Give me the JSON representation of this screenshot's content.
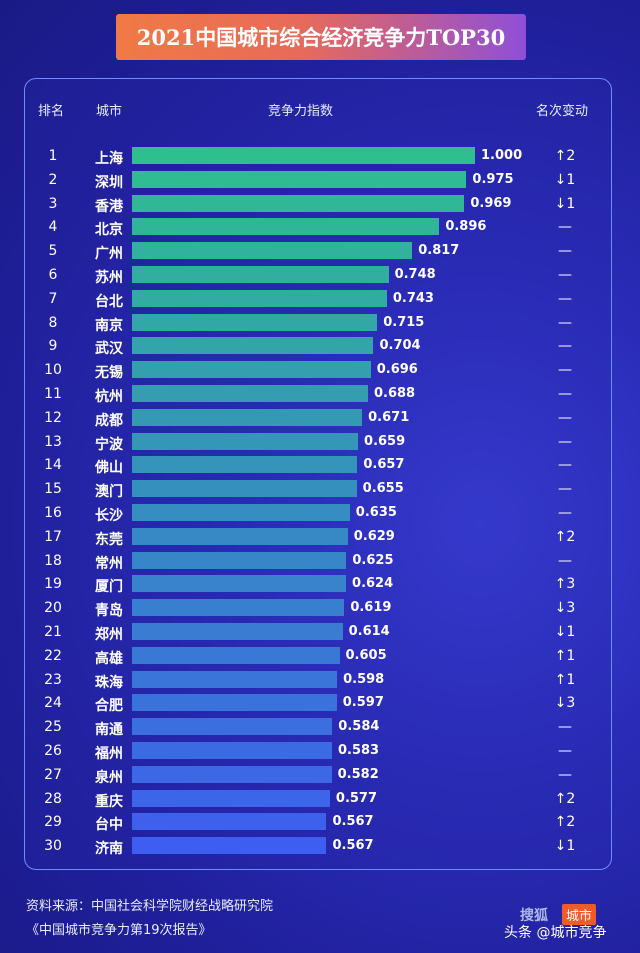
{
  "title": "2021中国城市综合经济竞争力TOP30",
  "headers": {
    "rank": "排名",
    "city": "城市",
    "index": "竞争力指数",
    "change": "名次变动"
  },
  "chart_data": {
    "type": "bar",
    "orientation": "horizontal",
    "title": "2021中国城市综合经济竞争力TOP30",
    "xlim": [
      0,
      1.0
    ],
    "rows": [
      {
        "rank": "1",
        "city": "上海",
        "value": "1.000",
        "change": "↑2"
      },
      {
        "rank": "2",
        "city": "深圳",
        "value": "0.975",
        "change": "↓1"
      },
      {
        "rank": "3",
        "city": "香港",
        "value": "0.969",
        "change": "↓1"
      },
      {
        "rank": "4",
        "city": "北京",
        "value": "0.896",
        "change": "—"
      },
      {
        "rank": "5",
        "city": "广州",
        "value": "0.817",
        "change": "—"
      },
      {
        "rank": "6",
        "city": "苏州",
        "value": "0.748",
        "change": "—"
      },
      {
        "rank": "7",
        "city": "台北",
        "value": "0.743",
        "change": "—"
      },
      {
        "rank": "8",
        "city": "南京",
        "value": "0.715",
        "change": "—"
      },
      {
        "rank": "9",
        "city": "武汉",
        "value": "0.704",
        "change": "—"
      },
      {
        "rank": "10",
        "city": "无锡",
        "value": "0.696",
        "change": "—"
      },
      {
        "rank": "11",
        "city": "杭州",
        "value": "0.688",
        "change": "—"
      },
      {
        "rank": "12",
        "city": "成都",
        "value": "0.671",
        "change": "—"
      },
      {
        "rank": "13",
        "city": "宁波",
        "value": "0.659",
        "change": "—"
      },
      {
        "rank": "14",
        "city": "佛山",
        "value": "0.657",
        "change": "—"
      },
      {
        "rank": "15",
        "city": "澳门",
        "value": "0.655",
        "change": "—"
      },
      {
        "rank": "16",
        "city": "长沙",
        "value": "0.635",
        "change": "—"
      },
      {
        "rank": "17",
        "city": "东莞",
        "value": "0.629",
        "change": "↑2"
      },
      {
        "rank": "18",
        "city": "常州",
        "value": "0.625",
        "change": "—"
      },
      {
        "rank": "19",
        "city": "厦门",
        "value": "0.624",
        "change": "↑3"
      },
      {
        "rank": "20",
        "city": "青岛",
        "value": "0.619",
        "change": "↓3"
      },
      {
        "rank": "21",
        "city": "郑州",
        "value": "0.614",
        "change": "↓1"
      },
      {
        "rank": "22",
        "city": "高雄",
        "value": "0.605",
        "change": "↑1"
      },
      {
        "rank": "23",
        "city": "珠海",
        "value": "0.598",
        "change": "↑1"
      },
      {
        "rank": "24",
        "city": "合肥",
        "value": "0.597",
        "change": "↓3"
      },
      {
        "rank": "25",
        "city": "南通",
        "value": "0.584",
        "change": "—"
      },
      {
        "rank": "26",
        "city": "福州",
        "value": "0.583",
        "change": "—"
      },
      {
        "rank": "27",
        "city": "泉州",
        "value": "0.582",
        "change": "—"
      },
      {
        "rank": "28",
        "city": "重庆",
        "value": "0.577",
        "change": "↑2"
      },
      {
        "rank": "29",
        "city": "台中",
        "value": "0.567",
        "change": "↑2"
      },
      {
        "rank": "30",
        "city": "济南",
        "value": "0.567",
        "change": "↓1"
      }
    ]
  },
  "source": {
    "line1": "资料来源：中国社会科学院财经战略研究院",
    "line2": "《中国城市竞争力第19次报告》"
  },
  "watermark": {
    "brand": "搜狐",
    "tag": "城市",
    "account": "头条 @城市竞争"
  },
  "colors": {
    "bar_top": "#2fbf8f",
    "bar_bottom": "#3d5ef0"
  }
}
